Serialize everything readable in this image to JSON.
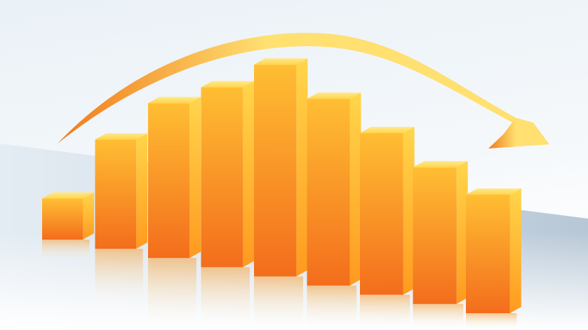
{
  "chart_data": {
    "type": "bar",
    "style": "3d",
    "categories": [
      "",
      "",
      "",
      "",
      "",
      "",
      "",
      "",
      ""
    ],
    "values": [
      18,
      48,
      68,
      79,
      93,
      82,
      71,
      60,
      52
    ],
    "ylim": [
      0,
      100
    ],
    "grid": false,
    "legend": "none",
    "trend_arrow": "rise-then-fall",
    "colors": {
      "bar_front_top": "#ffbe33",
      "bar_front_bottom": "#f36d1c",
      "bar_side_top": "#ffd64a",
      "bar_side_bottom": "#ff9a1f",
      "bar_cap_front": "#ffd54a",
      "bar_cap_back": "#ffe98f",
      "arrow_light": "#ffe070",
      "arrow_dark": "#f07a1a",
      "floor_tint": "#bfcfdd",
      "sky_top": "#e9f1f7"
    }
  }
}
